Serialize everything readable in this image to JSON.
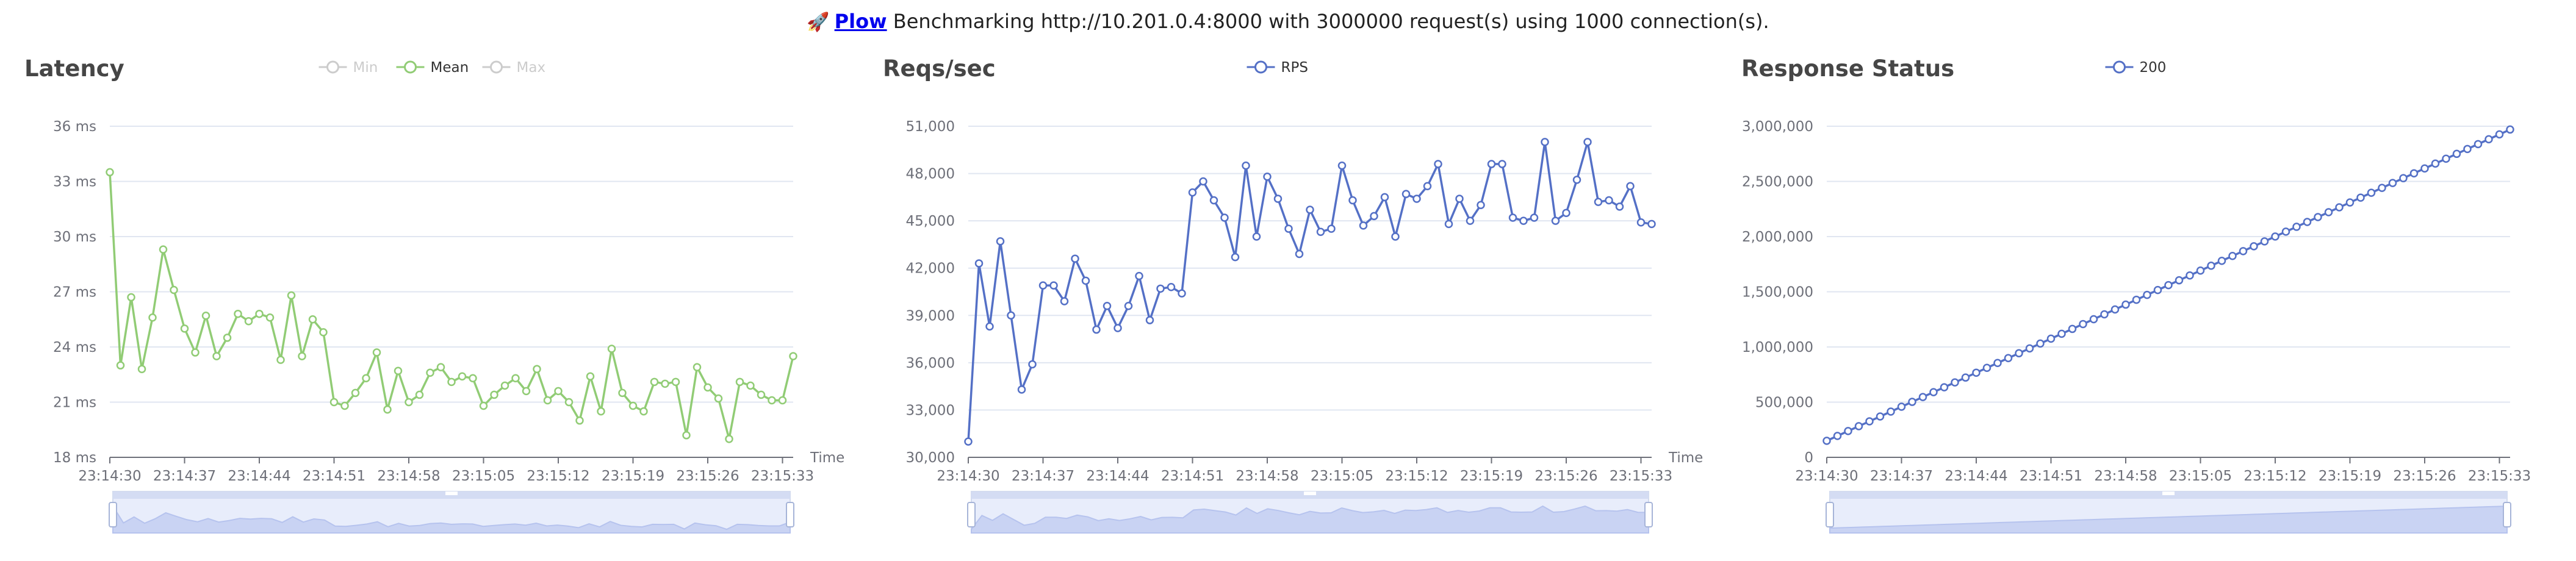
{
  "header": {
    "icon": "rocket-icon",
    "link_label": "Plow",
    "message": "Benchmarking http://10.201.0.4:8000 with 3000000 request(s) using 1000 connection(s)."
  },
  "chart_data": [
    {
      "type": "line",
      "title": "Latency",
      "xlabel": "Time",
      "ylabel": "",
      "x_ticks": [
        "23:14:30",
        "23:14:37",
        "23:14:44",
        "23:14:51",
        "23:14:58",
        "23:15:05",
        "23:15:12",
        "23:15:19",
        "23:15:26",
        "23:15:33"
      ],
      "y_ticks": [
        "18 ms",
        "21 ms",
        "24 ms",
        "27 ms",
        "30 ms",
        "33 ms",
        "36 ms"
      ],
      "ylim": [
        18,
        36
      ],
      "grid": true,
      "legend_position": "top-center",
      "legend": [
        {
          "name": "Min",
          "active": false
        },
        {
          "name": "Mean",
          "active": true
        },
        {
          "name": "Max",
          "active": false
        }
      ],
      "series": [
        {
          "name": "Mean",
          "color": "#91cc75",
          "values": [
            33.5,
            23.0,
            26.7,
            22.8,
            25.6,
            29.3,
            27.1,
            25.0,
            23.7,
            25.7,
            23.5,
            24.5,
            25.8,
            25.4,
            25.8,
            25.6,
            23.3,
            26.8,
            23.5,
            25.5,
            24.8,
            21.0,
            20.8,
            21.5,
            22.3,
            23.7,
            20.6,
            22.7,
            21.0,
            21.4,
            22.6,
            22.9,
            22.1,
            22.4,
            22.3,
            20.8,
            21.4,
            21.9,
            22.3,
            21.6,
            22.8,
            21.1,
            21.6,
            21.0,
            20.0,
            22.4,
            20.5,
            23.9,
            21.5,
            20.8,
            20.5,
            22.1,
            22.0,
            22.1,
            19.2,
            22.9,
            21.8,
            21.2,
            19.0,
            22.1,
            21.9,
            21.4,
            21.1,
            21.1,
            23.5
          ]
        }
      ]
    },
    {
      "type": "line",
      "title": "Reqs/sec",
      "xlabel": "Time",
      "ylabel": "",
      "x_ticks": [
        "23:14:30",
        "23:14:37",
        "23:14:44",
        "23:14:51",
        "23:14:58",
        "23:15:05",
        "23:15:12",
        "23:15:19",
        "23:15:26",
        "23:15:33"
      ],
      "y_ticks": [
        "30,000",
        "33,000",
        "36,000",
        "39,000",
        "42,000",
        "45,000",
        "48,000",
        "51,000"
      ],
      "ylim": [
        30000,
        51000
      ],
      "grid": true,
      "legend_position": "top-center",
      "legend": [
        {
          "name": "RPS",
          "active": true
        }
      ],
      "series": [
        {
          "name": "RPS",
          "color": "#5470c6",
          "values": [
            31000,
            42300,
            38300,
            43700,
            39000,
            34300,
            35900,
            40900,
            40900,
            39900,
            42600,
            41200,
            38100,
            39600,
            38200,
            39600,
            41500,
            38700,
            40700,
            40800,
            40400,
            46800,
            47500,
            46300,
            45200,
            42700,
            48500,
            44000,
            47800,
            46400,
            44500,
            42900,
            45700,
            44300,
            44500,
            48500,
            46300,
            44700,
            45300,
            46500,
            44000,
            46700,
            46400,
            47200,
            48600,
            44800,
            46400,
            45000,
            46000,
            48600,
            48600,
            45200,
            45000,
            45200,
            50000,
            45000,
            45500,
            47600,
            50000,
            46200,
            46300,
            45900,
            47200,
            44900,
            44800
          ]
        }
      ]
    },
    {
      "type": "line",
      "title": "Response Status",
      "xlabel": "",
      "ylabel": "",
      "x_ticks": [
        "23:14:30",
        "23:14:37",
        "23:14:44",
        "23:14:51",
        "23:14:58",
        "23:15:05",
        "23:15:12",
        "23:15:19",
        "23:15:26",
        "23:15:33"
      ],
      "y_ticks": [
        "0",
        "500,000",
        "1,000,000",
        "1,500,000",
        "2,000,000",
        "2,500,000",
        "3,000,000"
      ],
      "ylim": [
        0,
        3000000
      ],
      "grid": true,
      "legend_position": "top-center",
      "legend": [
        {
          "name": "200",
          "active": true
        }
      ],
      "series": [
        {
          "name": "200",
          "color": "#5470c6",
          "start": 150000,
          "end": 2970000,
          "points": 65
        }
      ]
    }
  ]
}
